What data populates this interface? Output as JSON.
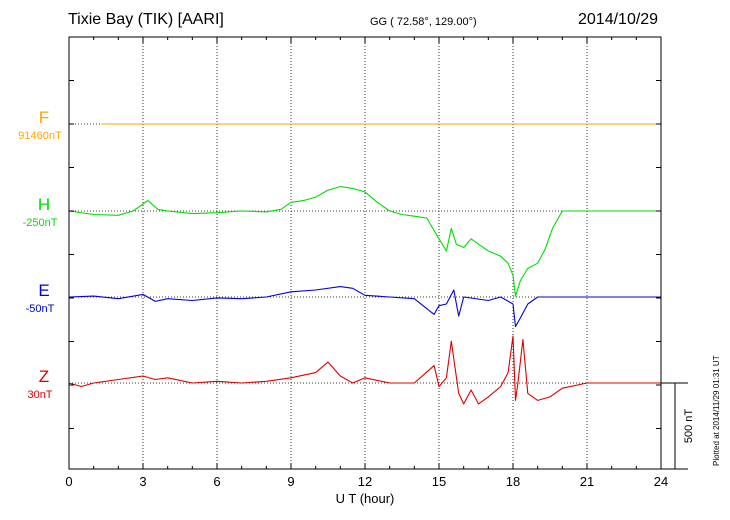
{
  "header": {
    "station": "Tixie Bay (TIK)  [AARI]",
    "coords": "GG ( 72.58°, 129.00°)",
    "date": "2014/10/29"
  },
  "footer_note": "Plotted at 2014/11/29 01:31  UT",
  "chart_data": {
    "type": "line",
    "xlabel": "U T (hour)",
    "xlim": [
      0,
      24
    ],
    "xticks": [
      0,
      3,
      6,
      9,
      12,
      15,
      18,
      21,
      24
    ],
    "scale_bar_label": "500 nT",
    "grid": true,
    "series": [
      {
        "name": "F",
        "baseline_label": "91460nT",
        "color": "#ffa500",
        "x": [
          1.3,
          24
        ],
        "values": [
          0,
          0
        ]
      },
      {
        "name": "H",
        "baseline_label": "-250nT",
        "color": "#00dd00",
        "x": [
          0,
          1,
          2,
          2.6,
          3.2,
          3.6,
          4,
          5,
          6,
          7,
          8,
          8.6,
          9,
          9.5,
          10,
          10.5,
          11,
          11.5,
          12,
          12.5,
          13,
          13.5,
          14,
          14.5,
          15,
          15.3,
          15.5,
          15.7,
          16,
          16.3,
          16.7,
          17,
          17.5,
          17.8,
          18,
          18.1,
          18.3,
          18.6,
          19,
          19.3,
          19.6,
          20,
          21,
          22,
          23,
          24
        ],
        "values": [
          0,
          -20,
          -25,
          0,
          60,
          10,
          0,
          -15,
          -10,
          0,
          -5,
          10,
          50,
          60,
          80,
          120,
          140,
          130,
          110,
          50,
          0,
          -20,
          -30,
          -40,
          -160,
          -230,
          -100,
          -190,
          -210,
          -160,
          -200,
          -230,
          -260,
          -300,
          -370,
          -490,
          -400,
          -330,
          -300,
          -220,
          -100,
          0,
          0,
          0,
          0,
          0
        ]
      },
      {
        "name": "E",
        "baseline_label": "-50nT",
        "color": "#0000dd",
        "x": [
          0,
          1,
          2,
          3,
          3.5,
          4,
          5,
          6,
          7,
          8,
          9,
          10,
          11,
          11.5,
          12,
          13,
          14,
          14.8,
          15,
          15.3,
          15.6,
          15.8,
          16,
          17,
          17.5,
          18,
          18.1,
          18.3,
          18.6,
          19,
          20,
          21,
          22,
          23,
          24
        ],
        "values": [
          0,
          5,
          -10,
          15,
          -25,
          -10,
          -20,
          -5,
          -10,
          0,
          30,
          40,
          60,
          50,
          10,
          0,
          -10,
          -100,
          -50,
          -40,
          40,
          -110,
          0,
          -20,
          0,
          -40,
          -170,
          -120,
          -40,
          0,
          0,
          0,
          0,
          0,
          0
        ]
      },
      {
        "name": "Z",
        "baseline_label": "30nT",
        "color": "#dd0000",
        "x": [
          0,
          0.5,
          1,
          2,
          3,
          3.5,
          4,
          5,
          6,
          7,
          8,
          9,
          10,
          10.5,
          11,
          11.5,
          12,
          13,
          14,
          14.8,
          15,
          15.3,
          15.5,
          15.8,
          16,
          16.3,
          16.6,
          17,
          17.5,
          17.8,
          18,
          18.1,
          18.2,
          18.4,
          18.6,
          19,
          19.5,
          20,
          21,
          22,
          23,
          24
        ],
        "values": [
          0,
          -20,
          0,
          20,
          40,
          20,
          30,
          0,
          10,
          0,
          10,
          30,
          60,
          120,
          40,
          0,
          30,
          0,
          0,
          100,
          -20,
          30,
          240,
          -60,
          -120,
          -40,
          -120,
          -80,
          -20,
          60,
          270,
          -100,
          0,
          250,
          -60,
          -100,
          -80,
          -30,
          0,
          0,
          0,
          0
        ]
      }
    ]
  }
}
